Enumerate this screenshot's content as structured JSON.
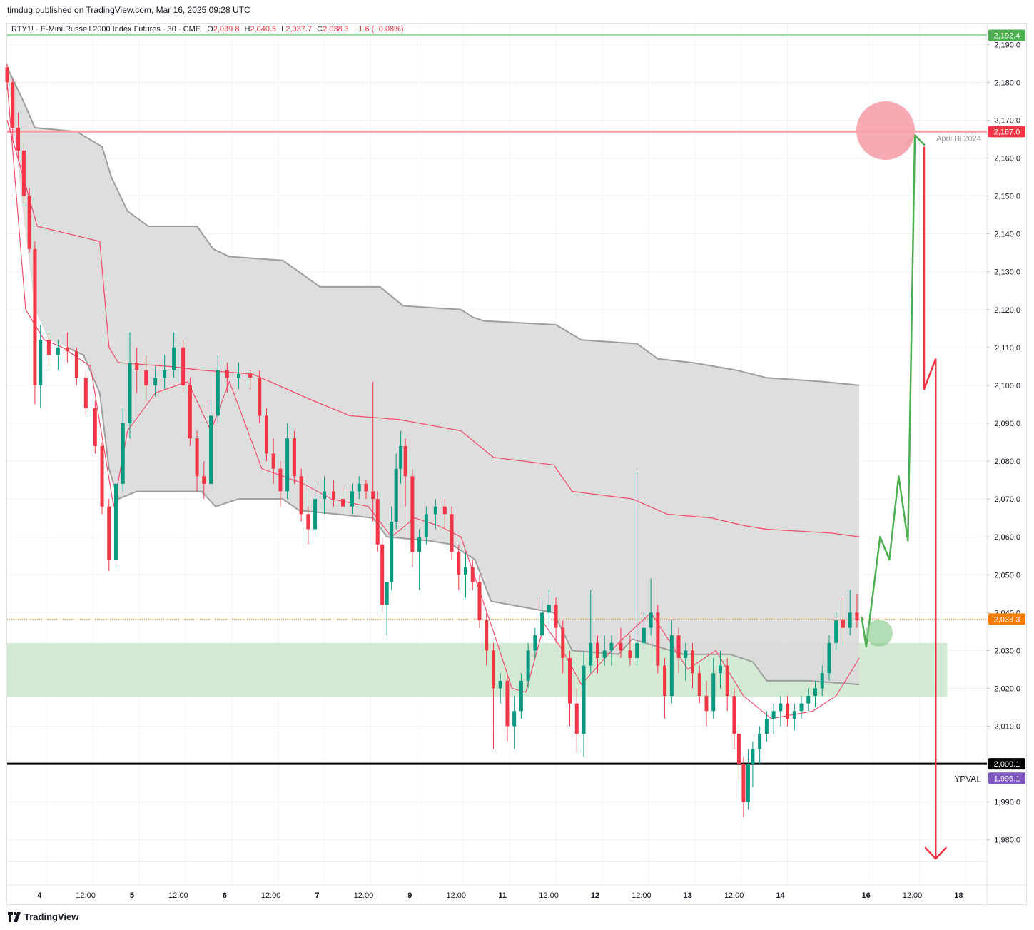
{
  "header": {
    "published": "timdug published on TradingView.com, Mar 16, 2025 09:28 UTC"
  },
  "legend": {
    "symbol": "RTY1! · E-Mini Russell 2000 Index Futures · 30 · CME",
    "open_label": "O",
    "open": "2,039.8",
    "high_label": "H",
    "high": "2,040.5",
    "low_label": "L",
    "low": "2,037.7",
    "close_label": "C",
    "close": "2,038.3",
    "change": "−1.6 (−0.08%)"
  },
  "footer": {
    "brand": "TradingView"
  },
  "colors": {
    "up": "#089981",
    "down": "#f23645",
    "band_fill": "#dadada",
    "band_edge": "#9e9e9e",
    "vwap": "#f0506e",
    "green_zone": "#c8e6c9",
    "resistance": "#f7a1ab",
    "top_line": "#a5d6a7",
    "support": "#000000",
    "arrow_up": "#4caf50",
    "arrow_down": "#f23645",
    "val_badge": "#7e57c2",
    "last_badge": "#f57c00"
  },
  "chart_data": {
    "type": "candlestick",
    "title": "RTY1! · E-Mini Russell 2000 Index Futures · 30 · CME",
    "timeframe": "30",
    "y_axis": {
      "ylim": [
        1973,
        2196
      ],
      "ticks": [
        "2,190.0",
        "2,180.0",
        "2,170.0",
        "2,160.0",
        "2,150.0",
        "2,140.0",
        "2,130.0",
        "2,120.0",
        "2,110.0",
        "2,100.0",
        "2,090.0",
        "2,080.0",
        "2,070.0",
        "2,060.0",
        "2,050.0",
        "2,040.0",
        "2,030.0",
        "2,020.0",
        "2,010.0",
        "1,990.0",
        "1,980.0"
      ],
      "tick_values": [
        2190,
        2180,
        2170,
        2160,
        2150,
        2140,
        2130,
        2120,
        2110,
        2100,
        2090,
        2080,
        2070,
        2060,
        2050,
        2040,
        2030,
        2020,
        2010,
        1990,
        1980
      ]
    },
    "x_axis": {
      "xlim": [
        0,
        20.6
      ],
      "ticks": [
        "4",
        "12:00",
        "5",
        "12:00",
        "6",
        "12:00",
        "7",
        "12:00",
        "9",
        "12:00",
        "11",
        "12:00",
        "12",
        "12:00",
        "13",
        "12:00",
        "14",
        "16",
        "12:00",
        "18"
      ],
      "tick_values": [
        0.85,
        1.85,
        2.85,
        3.85,
        4.85,
        5.85,
        6.85,
        7.85,
        8.85,
        9.85,
        10.85,
        11.85,
        12.85,
        13.85,
        14.85,
        15.85,
        16.85,
        18.7,
        19.7,
        20.7
      ],
      "bold_ticks": [
        "4",
        "5",
        "6",
        "7",
        "9",
        "11",
        "12",
        "13",
        "14",
        "16",
        "18"
      ]
    },
    "horizontal_levels": [
      {
        "price": 2192.4,
        "label": "2,192.4",
        "color": "#a5d6a7",
        "badge": "#4caf50"
      },
      {
        "price": 2167.0,
        "label": "2,167.0",
        "color": "#f7a1ab",
        "badge": "#f23645",
        "annotation": "April Hi 2024"
      },
      {
        "price": 2000.1,
        "label": "2,000.1",
        "color": "#000000",
        "badge": "#000000"
      },
      {
        "price": 1996.1,
        "label": "1,996.1",
        "badge": "#7e57c2",
        "annotation": "YPVAL"
      },
      {
        "price": 2038.3,
        "label": "2,038.3",
        "badge": "#f57c00",
        "dotted": true
      }
    ],
    "zone": {
      "top": 2032.0,
      "bottom": 2017.8,
      "x_end": 20.3
    },
    "circles": [
      {
        "x": 19.0,
        "price": 2167.5,
        "color": "#f7a1ab"
      },
      {
        "x": 18.5,
        "price": 2033.0,
        "color": "#a5d6a7"
      }
    ],
    "band_upper": [
      [
        0,
        2184
      ],
      [
        0.35,
        2175
      ],
      [
        0.6,
        2168
      ],
      [
        1.5,
        2167
      ],
      [
        2.05,
        2163
      ],
      [
        2.25,
        2155
      ],
      [
        2.6,
        2146
      ],
      [
        3.05,
        2142
      ],
      [
        4.1,
        2142
      ],
      [
        4.45,
        2136
      ],
      [
        4.8,
        2134
      ],
      [
        5.95,
        2133
      ],
      [
        6.3,
        2130
      ],
      [
        6.75,
        2126
      ],
      [
        7.05,
        2126
      ],
      [
        8.05,
        2126
      ],
      [
        8.55,
        2121
      ],
      [
        9.8,
        2120
      ],
      [
        10.05,
        2118
      ],
      [
        10.3,
        2117
      ],
      [
        11.85,
        2116
      ],
      [
        12.4,
        2112
      ],
      [
        13.6,
        2111
      ],
      [
        14.05,
        2107
      ],
      [
        14.8,
        2106
      ],
      [
        15.75,
        2104
      ],
      [
        16.4,
        2102
      ],
      [
        17.6,
        2101
      ],
      [
        18.4,
        2100
      ]
    ],
    "band_lower": [
      [
        1.3,
        2110
      ],
      [
        1.65,
        2108
      ],
      [
        2.0,
        2098
      ],
      [
        2.2,
        2078
      ],
      [
        2.4,
        2070
      ],
      [
        2.8,
        2072
      ],
      [
        4.2,
        2072
      ],
      [
        4.5,
        2068
      ],
      [
        5.0,
        2070
      ],
      [
        5.95,
        2070
      ],
      [
        6.3,
        2067
      ],
      [
        7.9,
        2065
      ],
      [
        8.2,
        2060
      ],
      [
        9.1,
        2059
      ],
      [
        9.6,
        2058
      ],
      [
        10.1,
        2054
      ],
      [
        10.45,
        2043
      ],
      [
        11.8,
        2040
      ],
      [
        12.2,
        2030
      ],
      [
        13.2,
        2029
      ],
      [
        13.5,
        2033
      ],
      [
        14.6,
        2029
      ],
      [
        15.6,
        2029
      ],
      [
        16.1,
        2027
      ],
      [
        16.4,
        2022
      ],
      [
        17.3,
        2022
      ],
      [
        18.4,
        2021
      ]
    ],
    "vwap_line": [
      [
        0,
        2170
      ],
      [
        0.65,
        2142
      ],
      [
        2.0,
        2138
      ],
      [
        2.2,
        2110
      ],
      [
        2.4,
        2106
      ],
      [
        3.5,
        2105
      ],
      [
        4.2,
        2104
      ],
      [
        5.3,
        2103
      ],
      [
        6.6,
        2096
      ],
      [
        7.4,
        2092
      ],
      [
        8.45,
        2091
      ],
      [
        9.8,
        2088
      ],
      [
        10.5,
        2081
      ],
      [
        11.8,
        2079
      ],
      [
        12.2,
        2072
      ],
      [
        13.5,
        2070
      ],
      [
        14.25,
        2066
      ],
      [
        15.2,
        2065
      ],
      [
        15.9,
        2063
      ],
      [
        16.4,
        2062
      ],
      [
        17.8,
        2061
      ],
      [
        18.4,
        2060
      ]
    ],
    "vwap_inner": [
      [
        0,
        2180
      ],
      [
        0.4,
        2120
      ],
      [
        0.8,
        2112
      ],
      [
        1.2,
        2110
      ],
      [
        1.8,
        2105
      ],
      [
        2.3,
        2068
      ],
      [
        2.6,
        2088
      ],
      [
        3.2,
        2098
      ],
      [
        3.9,
        2101
      ],
      [
        4.4,
        2088
      ],
      [
        4.8,
        2101
      ],
      [
        5.5,
        2078
      ],
      [
        6.4,
        2074
      ],
      [
        7.0,
        2070
      ],
      [
        7.8,
        2068
      ],
      [
        8.3,
        2060
      ],
      [
        8.8,
        2065
      ],
      [
        9.3,
        2063
      ],
      [
        9.8,
        2060
      ],
      [
        10.5,
        2035
      ],
      [
        10.9,
        2020
      ],
      [
        11.2,
        2019
      ],
      [
        11.6,
        2037
      ],
      [
        12.0,
        2030
      ],
      [
        12.4,
        2021
      ],
      [
        13.2,
        2032
      ],
      [
        13.9,
        2040
      ],
      [
        14.7,
        2025
      ],
      [
        15.3,
        2030
      ],
      [
        15.9,
        2018
      ],
      [
        16.5,
        2012
      ],
      [
        17.4,
        2014
      ],
      [
        17.9,
        2018
      ],
      [
        18.4,
        2028
      ]
    ],
    "candles_ohlc_sampled": [
      [
        0,
        2184,
        2185,
        2178,
        2180
      ],
      [
        0.12,
        2180,
        2181,
        2165,
        2168
      ],
      [
        0.24,
        2168,
        2172,
        2160,
        2162
      ],
      [
        0.36,
        2162,
        2164,
        2148,
        2150
      ],
      [
        0.48,
        2150,
        2152,
        2135,
        2136
      ],
      [
        0.6,
        2136,
        2138,
        2095,
        2100
      ],
      [
        0.72,
        2100,
        2116,
        2094,
        2112
      ],
      [
        0.9,
        2112,
        2114,
        2104,
        2108
      ],
      [
        1.1,
        2108,
        2112,
        2104,
        2110
      ],
      [
        1.3,
        2110,
        2114,
        2106,
        2109
      ],
      [
        1.5,
        2109,
        2110,
        2100,
        2102
      ],
      [
        1.7,
        2102,
        2104,
        2092,
        2094
      ],
      [
        1.9,
        2094,
        2096,
        2082,
        2084
      ],
      [
        2.05,
        2084,
        2085,
        2066,
        2068
      ],
      [
        2.2,
        2068,
        2070,
        2051,
        2054
      ],
      [
        2.35,
        2054,
        2076,
        2052,
        2074
      ],
      [
        2.5,
        2074,
        2094,
        2072,
        2090
      ],
      [
        2.65,
        2090,
        2114,
        2086,
        2106
      ],
      [
        2.8,
        2106,
        2110,
        2098,
        2104
      ],
      [
        3.0,
        2104,
        2108,
        2096,
        2100
      ],
      [
        3.2,
        2100,
        2105,
        2097,
        2102
      ],
      [
        3.4,
        2102,
        2108,
        2099,
        2104
      ],
      [
        3.6,
        2104,
        2114,
        2102,
        2110
      ],
      [
        3.8,
        2110,
        2112,
        2098,
        2100
      ],
      [
        3.95,
        2100,
        2102,
        2084,
        2086
      ],
      [
        4.1,
        2086,
        2088,
        2072,
        2076
      ],
      [
        4.25,
        2076,
        2080,
        2070,
        2074
      ],
      [
        4.4,
        2074,
        2096,
        2072,
        2092
      ],
      [
        4.55,
        2092,
        2108,
        2090,
        2104
      ],
      [
        4.75,
        2104,
        2106,
        2098,
        2102
      ],
      [
        5.0,
        2102,
        2106,
        2099,
        2103
      ],
      [
        5.25,
        2103,
        2104,
        2099,
        2102
      ],
      [
        5.45,
        2102,
        2104,
        2090,
        2092
      ],
      [
        5.6,
        2092,
        2094,
        2080,
        2082
      ],
      [
        5.75,
        2082,
        2086,
        2074,
        2078
      ],
      [
        5.9,
        2078,
        2080,
        2068,
        2072
      ],
      [
        6.05,
        2072,
        2090,
        2070,
        2086
      ],
      [
        6.2,
        2086,
        2088,
        2074,
        2076
      ],
      [
        6.35,
        2076,
        2078,
        2064,
        2066
      ],
      [
        6.5,
        2066,
        2068,
        2058,
        2062
      ],
      [
        6.65,
        2062,
        2074,
        2060,
        2070
      ],
      [
        6.85,
        2070,
        2076,
        2066,
        2072
      ],
      [
        7.05,
        2072,
        2075,
        2068,
        2070
      ],
      [
        7.25,
        2070,
        2073,
        2066,
        2068
      ],
      [
        7.45,
        2068,
        2074,
        2066,
        2072
      ],
      [
        7.6,
        2072,
        2076,
        2070,
        2074
      ],
      [
        7.75,
        2074,
        2075,
        2070,
        2072
      ],
      [
        7.9,
        2072,
        2101,
        2064,
        2070
      ],
      [
        8.0,
        2070,
        2072,
        2056,
        2058
      ],
      [
        8.1,
        2058,
        2060,
        2040,
        2042
      ],
      [
        8.2,
        2042,
        2044,
        2034,
        2048
      ],
      [
        8.3,
        2048,
        2068,
        2046,
        2064
      ],
      [
        8.4,
        2064,
        2082,
        2062,
        2078
      ],
      [
        8.5,
        2078,
        2088,
        2074,
        2084
      ],
      [
        8.6,
        2084,
        2086,
        2068,
        2076
      ],
      [
        8.75,
        2076,
        2078,
        2052,
        2056
      ],
      [
        8.9,
        2056,
        2062,
        2046,
        2060
      ],
      [
        9.05,
        2060,
        2068,
        2058,
        2066
      ],
      [
        9.25,
        2066,
        2070,
        2062,
        2068
      ],
      [
        9.45,
        2068,
        2070,
        2062,
        2066
      ],
      [
        9.6,
        2066,
        2068,
        2054,
        2056
      ],
      [
        9.75,
        2056,
        2058,
        2046,
        2050
      ],
      [
        9.9,
        2050,
        2056,
        2044,
        2052
      ],
      [
        10.05,
        2052,
        2054,
        2046,
        2048
      ],
      [
        10.2,
        2048,
        2050,
        2036,
        2038
      ],
      [
        10.35,
        2038,
        2040,
        2026,
        2030
      ],
      [
        10.5,
        2030,
        2032,
        2004,
        2020
      ],
      [
        10.65,
        2020,
        2024,
        2016,
        2022
      ],
      [
        10.8,
        2022,
        2024,
        2006,
        2010
      ],
      [
        10.95,
        2010,
        2018,
        2004,
        2014
      ],
      [
        11.1,
        2014,
        2024,
        2012,
        2022
      ],
      [
        11.25,
        2022,
        2032,
        2020,
        2030
      ],
      [
        11.4,
        2030,
        2036,
        2028,
        2034
      ],
      [
        11.55,
        2034,
        2044,
        2032,
        2040
      ],
      [
        11.7,
        2040,
        2046,
        2036,
        2042
      ],
      [
        11.85,
        2042,
        2044,
        2032,
        2036
      ],
      [
        12.0,
        2036,
        2038,
        2024,
        2028
      ],
      [
        12.15,
        2028,
        2030,
        2010,
        2016
      ],
      [
        12.3,
        2016,
        2020,
        2003,
        2008
      ],
      [
        12.45,
        2008,
        2030,
        2002,
        2026
      ],
      [
        12.6,
        2026,
        2046,
        2024,
        2032
      ],
      [
        12.75,
        2032,
        2034,
        2024,
        2028
      ],
      [
        12.9,
        2028,
        2034,
        2026,
        2030
      ],
      [
        13.05,
        2030,
        2034,
        2026,
        2032
      ],
      [
        13.25,
        2032,
        2036,
        2028,
        2030
      ],
      [
        13.45,
        2030,
        2034,
        2026,
        2028
      ],
      [
        13.6,
        2028,
        2077,
        2026,
        2032
      ],
      [
        13.75,
        2032,
        2040,
        2030,
        2036
      ],
      [
        13.9,
        2036,
        2049,
        2034,
        2040
      ],
      [
        14.05,
        2040,
        2042,
        2024,
        2026
      ],
      [
        14.2,
        2026,
        2028,
        2012,
        2018
      ],
      [
        14.35,
        2018,
        2038,
        2016,
        2034
      ],
      [
        14.5,
        2034,
        2036,
        2024,
        2028
      ],
      [
        14.65,
        2028,
        2032,
        2022,
        2030
      ],
      [
        14.8,
        2030,
        2032,
        2020,
        2024
      ],
      [
        14.95,
        2024,
        2026,
        2016,
        2018
      ],
      [
        15.1,
        2018,
        2022,
        2010,
        2014
      ],
      [
        15.25,
        2014,
        2028,
        2012,
        2024
      ],
      [
        15.4,
        2024,
        2030,
        2020,
        2026
      ],
      [
        15.55,
        2026,
        2028,
        2014,
        2018
      ],
      [
        15.7,
        2018,
        2020,
        2004,
        2008
      ],
      [
        15.8,
        2008,
        2010,
        1996,
        2000
      ],
      [
        15.9,
        2000,
        2002,
        1986,
        1990
      ],
      [
        16.0,
        1990,
        2004,
        1988,
        2000
      ],
      [
        16.1,
        2000,
        2006,
        1994,
        2004
      ],
      [
        16.25,
        2004,
        2010,
        2000,
        2008
      ],
      [
        16.4,
        2008,
        2014,
        2006,
        2012
      ],
      [
        16.55,
        2012,
        2016,
        2008,
        2014
      ],
      [
        16.7,
        2014,
        2018,
        2010,
        2016
      ],
      [
        16.85,
        2016,
        2018,
        2010,
        2012
      ],
      [
        17.0,
        2012,
        2016,
        2009,
        2014
      ],
      [
        17.15,
        2014,
        2018,
        2012,
        2016
      ],
      [
        17.3,
        2016,
        2020,
        2014,
        2018
      ],
      [
        17.45,
        2018,
        2022,
        2015,
        2020
      ],
      [
        17.6,
        2020,
        2026,
        2018,
        2024
      ],
      [
        17.75,
        2024,
        2034,
        2022,
        2032
      ],
      [
        17.9,
        2032,
        2040,
        2030,
        2038
      ],
      [
        18.05,
        2038,
        2044,
        2032,
        2036
      ],
      [
        18.2,
        2036,
        2046,
        2034,
        2040
      ],
      [
        18.35,
        2040,
        2045,
        2036,
        2038
      ]
    ],
    "forecast_up": [
      [
        18.45,
        2039
      ],
      [
        18.55,
        2031
      ],
      [
        18.85,
        2060
      ],
      [
        19.05,
        2054
      ],
      [
        19.25,
        2076
      ],
      [
        19.45,
        2059
      ],
      [
        19.6,
        2166
      ],
      [
        19.75,
        2162
      ]
    ],
    "forecast_down": [
      [
        19.8,
        2163
      ],
      [
        19.8,
        2099
      ],
      [
        20.05,
        2107
      ],
      [
        20.05,
        1975
      ]
    ]
  }
}
